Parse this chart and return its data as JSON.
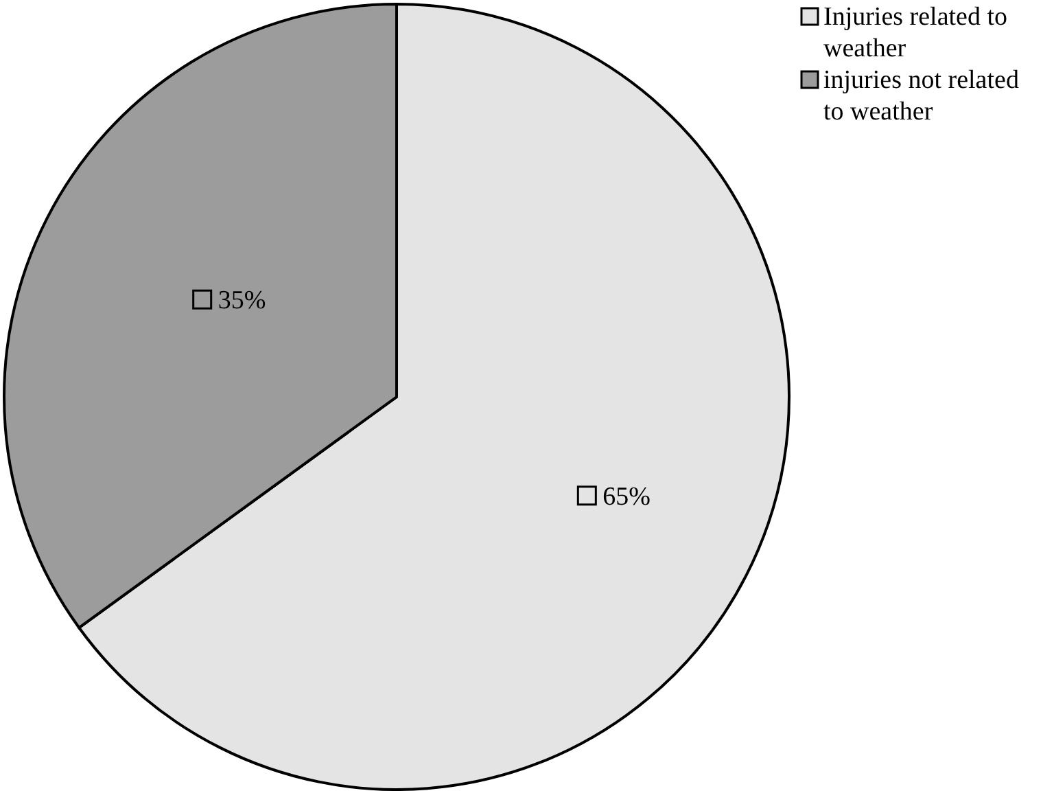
{
  "chart_data": {
    "type": "pie",
    "categories": [
      "Injuries related to weather",
      "injuries not related to weather"
    ],
    "values": [
      65,
      35
    ],
    "colors": [
      "#e4e4e4",
      "#9c9c9c"
    ],
    "value_labels": [
      "65%",
      "35%"
    ],
    "legend": "top right"
  }
}
